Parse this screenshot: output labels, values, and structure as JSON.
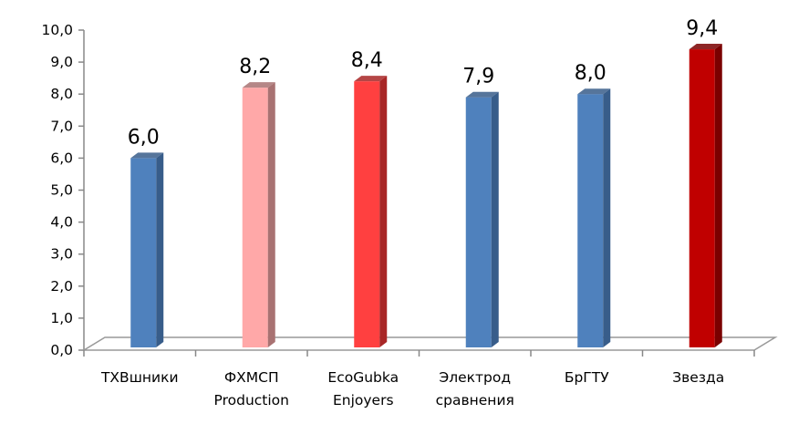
{
  "chart_data": {
    "type": "bar",
    "title": "",
    "xlabel": "",
    "ylabel": "",
    "ylim": [
      0,
      10
    ],
    "yticks": [
      "0,0",
      "1,0",
      "2,0",
      "3,0",
      "4,0",
      "5,0",
      "6,0",
      "7,0",
      "8,0",
      "9,0",
      "10,0"
    ],
    "categories": [
      [
        "ТХВшники"
      ],
      [
        "ФХМСП",
        "Production"
      ],
      [
        "EcoGubka",
        "Enjoyers"
      ],
      [
        "Электрод",
        "сравнения"
      ],
      [
        "БрГТУ"
      ],
      [
        "Звезда"
      ]
    ],
    "values": [
      6.0,
      8.2,
      8.4,
      7.9,
      8.0,
      9.4
    ],
    "value_labels": [
      "6,0",
      "8,2",
      "8,4",
      "7,9",
      "8,0",
      "9,4"
    ],
    "colors": [
      {
        "front": "#4F81BD",
        "side": "#385D8A"
      },
      {
        "front": "#FFA8A8",
        "side": "#A87272"
      },
      {
        "front": "#FF4040",
        "side": "#A82626"
      },
      {
        "front": "#4F81BD",
        "side": "#385D8A"
      },
      {
        "front": "#4F81BD",
        "side": "#385D8A"
      },
      {
        "front": "#C00000",
        "side": "#7A0000"
      }
    ],
    "grid": false,
    "legend": "none"
  }
}
